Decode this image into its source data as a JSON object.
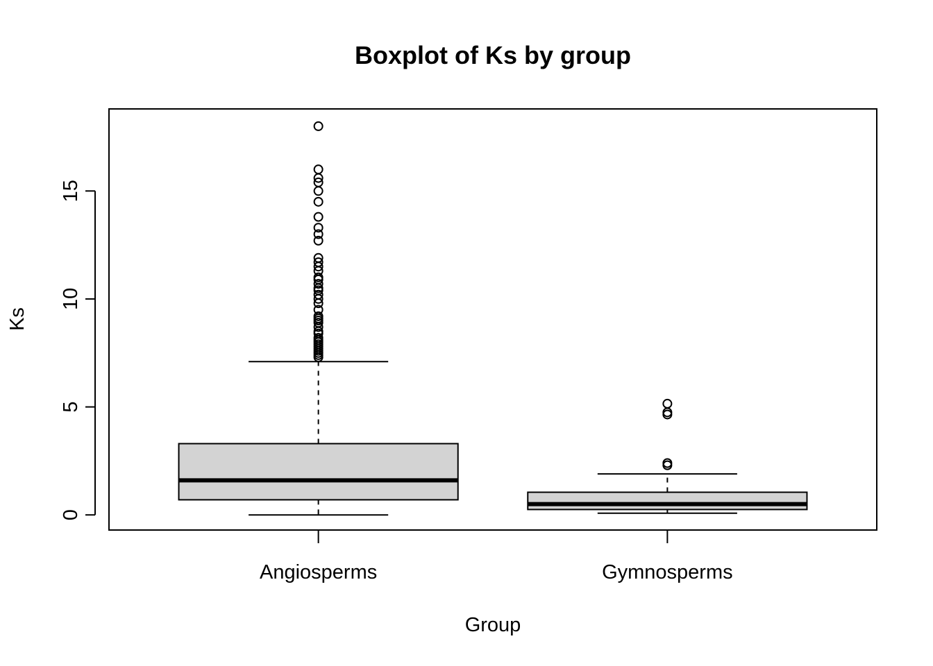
{
  "chart_data": {
    "type": "boxplot",
    "title": "Boxplot of Ks by group",
    "xlabel": "Group",
    "ylabel": "Ks",
    "ylim": [
      -0.7,
      18.8
    ],
    "yticks": [
      0,
      5,
      10,
      15
    ],
    "categories": [
      "Angiosperms",
      "Gymnosperms"
    ],
    "box_fill": "#d3d3d3",
    "boxes": [
      {
        "name": "Angiosperms",
        "whisker_low": 0.0,
        "q1": 0.7,
        "median": 1.6,
        "q3": 3.3,
        "whisker_high": 7.1,
        "outliers": [
          7.3,
          7.4,
          7.5,
          7.6,
          7.7,
          7.8,
          7.9,
          8.0,
          8.1,
          8.2,
          8.4,
          8.5,
          8.7,
          8.9,
          9.0,
          9.1,
          9.2,
          9.5,
          9.8,
          10.0,
          10.2,
          10.4,
          10.5,
          10.7,
          10.9,
          11.0,
          11.3,
          11.5,
          11.7,
          11.9,
          12.7,
          13.0,
          13.3,
          13.8,
          14.5,
          15.0,
          15.4,
          15.6,
          16.0,
          18.0
        ]
      },
      {
        "name": "Gymnosperms",
        "whisker_low": 0.08,
        "q1": 0.25,
        "median": 0.5,
        "q3": 1.05,
        "whisker_high": 1.9,
        "outliers": [
          2.3,
          2.4,
          4.65,
          4.75,
          5.15
        ]
      }
    ]
  }
}
